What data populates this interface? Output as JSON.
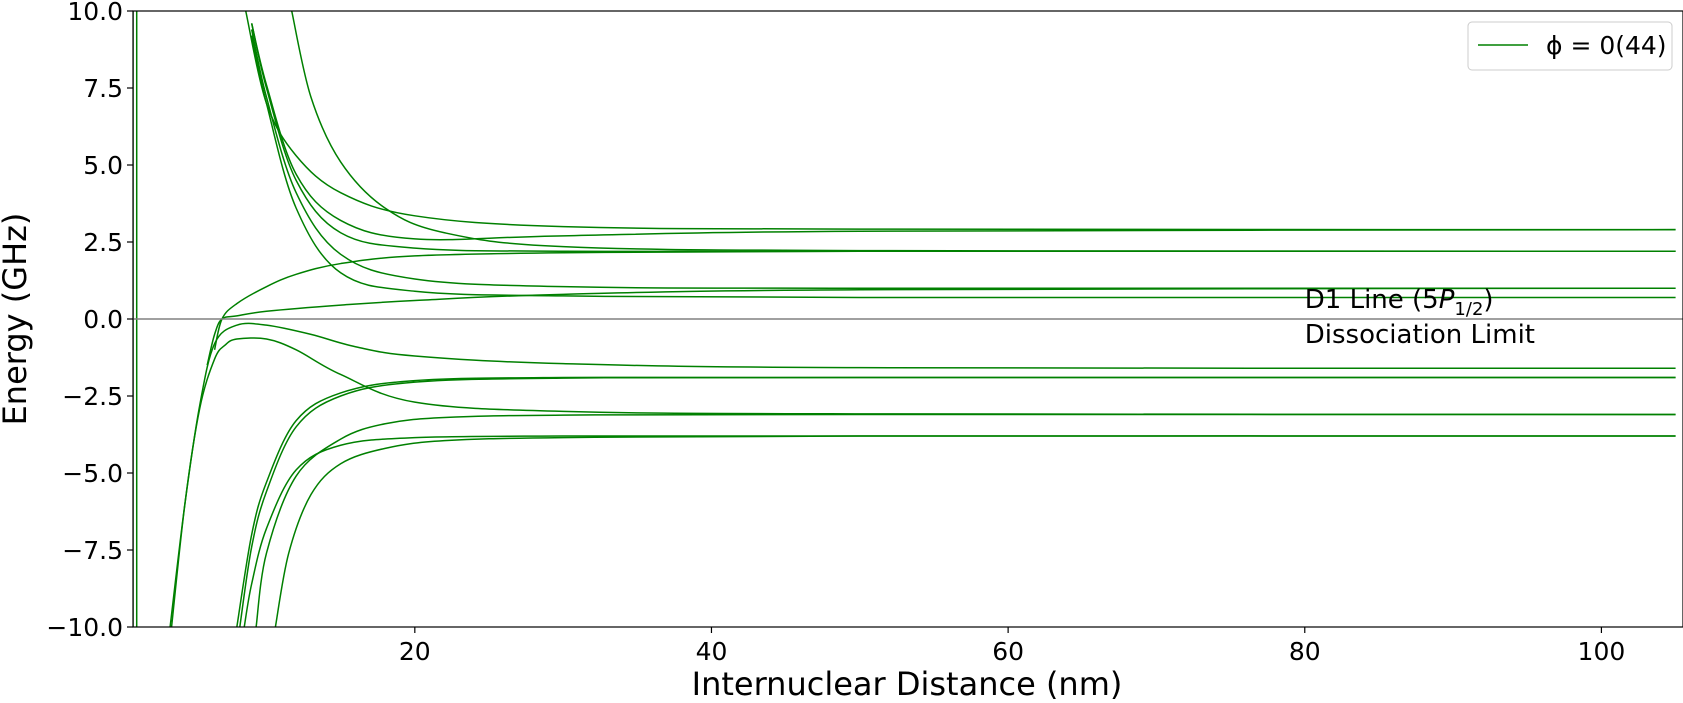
{
  "chart_data": {
    "type": "line",
    "title": "",
    "xlabel": "Internuclear Distance (nm)",
    "ylabel": "Energy (GHz)",
    "xlim": [
      1.0,
      105.5
    ],
    "ylim": [
      -10.0,
      10.0
    ],
    "x_ticks": [
      20,
      40,
      60,
      80,
      100
    ],
    "x_tick_labels": [
      "20",
      "40",
      "60",
      "80",
      "100"
    ],
    "y_ticks": [
      -10,
      -7.5,
      -5,
      -2.5,
      0,
      2.5,
      5,
      7.5,
      10
    ],
    "y_tick_labels": [
      "−10.0",
      "−7.5",
      "−5.0",
      "−2.5",
      "0.0",
      "2.5",
      "5.0",
      "7.5",
      "10.0"
    ],
    "grid": false,
    "legend": {
      "position": "top-right",
      "label": "ϕ = 0(44)"
    },
    "series_color": "#008000",
    "reference_line": {
      "y": 0,
      "color": "#808080"
    },
    "annotation": {
      "x": 80,
      "y": 0,
      "line1_prefix": "D1 Line (5",
      "line1_italic": "P",
      "line1_subscript": "1/2",
      "line1_suffix": ")",
      "line2": "Dissociation Limit"
    },
    "series": [
      {
        "asymptote": 2.9,
        "x": [
          8.6,
          10,
          12,
          15,
          20,
          30,
          50,
          105
        ],
        "y": [
          10.0,
          7.0,
          5.3,
          4.1,
          3.35,
          3.0,
          2.92,
          2.9
        ]
      },
      {
        "asymptote": 2.9,
        "x": [
          9,
          10,
          12,
          15,
          20,
          30,
          50,
          105
        ],
        "y": [
          9.6,
          7.6,
          4.7,
          3.2,
          2.6,
          2.7,
          2.85,
          2.9
        ]
      },
      {
        "asymptote": 2.2,
        "x": [
          11.7,
          13,
          15,
          18,
          22,
          30,
          50,
          105
        ],
        "y": [
          10.0,
          7.2,
          5.1,
          3.6,
          2.8,
          2.35,
          2.22,
          2.2
        ]
      },
      {
        "asymptote": 2.2,
        "x": [
          9,
          10,
          12,
          15,
          20,
          30,
          50,
          105
        ],
        "y": [
          9.6,
          7.5,
          4.5,
          2.8,
          2.3,
          2.2,
          2.2,
          2.2
        ]
      },
      {
        "asymptote": 1.0,
        "x": [
          9,
          10,
          12,
          15,
          20,
          30,
          50,
          105
        ],
        "y": [
          9.4,
          7.2,
          4.1,
          2.1,
          1.3,
          1.05,
          1.0,
          1.0
        ]
      },
      {
        "asymptote": 0.7,
        "x": [
          9,
          10,
          12,
          15,
          20,
          30,
          50,
          105
        ],
        "y": [
          9.2,
          7.0,
          3.6,
          1.5,
          0.9,
          0.75,
          0.7,
          0.7
        ]
      },
      {
        "asymptote": 2.2,
        "x": [
          6.5,
          7,
          8,
          10,
          12,
          15,
          20,
          30,
          50,
          105
        ],
        "y": [
          -1.0,
          0.0,
          0.5,
          1.05,
          1.45,
          1.8,
          2.05,
          2.15,
          2.2,
          2.2
        ]
      },
      {
        "asymptote": 1.0,
        "x": [
          6.0,
          6.5,
          7,
          8,
          10,
          15,
          20,
          30,
          50,
          105
        ],
        "y": [
          -1.5,
          -0.5,
          0.0,
          0.1,
          0.25,
          0.45,
          0.6,
          0.8,
          0.95,
          1.0
        ]
      },
      {
        "asymptote": -1.6,
        "x": [
          3.5,
          4.5,
          5.5,
          6.5,
          8,
          10,
          13,
          16,
          20,
          30,
          50,
          105
        ],
        "y": [
          -10.0,
          -6.0,
          -2.8,
          -0.8,
          -0.2,
          -0.2,
          -0.5,
          -0.9,
          -1.2,
          -1.45,
          -1.58,
          -1.6
        ]
      },
      {
        "asymptote": -3.1,
        "x": [
          3.6,
          4.5,
          5.5,
          6.5,
          7.2,
          8,
          10,
          12,
          15,
          20,
          30,
          50,
          105
        ],
        "y": [
          -10.0,
          -6.0,
          -2.9,
          -1.3,
          -0.85,
          -0.65,
          -0.65,
          -1.0,
          -1.8,
          -2.7,
          -3.0,
          -3.08,
          -3.1
        ]
      },
      {
        "asymptote": -1.9,
        "x": [
          8.0,
          9,
          10,
          12,
          15,
          20,
          30,
          50,
          105
        ],
        "y": [
          -10.0,
          -7.0,
          -5.3,
          -3.3,
          -2.4,
          -2.0,
          -1.9,
          -1.9,
          -1.9
        ]
      },
      {
        "asymptote": -1.9,
        "x": [
          8.2,
          9,
          10,
          12,
          15,
          20,
          30,
          50,
          105
        ],
        "y": [
          -10.0,
          -7.4,
          -5.6,
          -3.5,
          -2.5,
          -2.05,
          -1.92,
          -1.9,
          -1.9
        ]
      },
      {
        "asymptote": -3.1,
        "x": [
          9.3,
          10,
          12,
          15,
          18,
          22,
          30,
          50,
          105
        ],
        "y": [
          -10.0,
          -7.6,
          -5.1,
          -3.9,
          -3.4,
          -3.2,
          -3.12,
          -3.1,
          -3.1
        ]
      },
      {
        "asymptote": -3.8,
        "x": [
          8.5,
          9,
          10,
          12,
          15,
          20,
          30,
          50,
          105
        ],
        "y": [
          -10.0,
          -8.6,
          -6.8,
          -4.9,
          -4.1,
          -3.85,
          -3.8,
          -3.8,
          -3.8
        ]
      },
      {
        "asymptote": -3.8,
        "x": [
          10.6,
          11.5,
          13,
          15,
          18,
          22,
          30,
          50,
          105
        ],
        "y": [
          -10.0,
          -7.6,
          -5.7,
          -4.7,
          -4.2,
          -3.95,
          -3.85,
          -3.8,
          -3.8
        ]
      },
      {
        "asymptote": null,
        "x": [
          1.0,
          1.0
        ],
        "y": [
          -10.0,
          10.0
        ]
      },
      {
        "asymptote": null,
        "x": [
          1.25,
          1.25
        ],
        "y": [
          -10.0,
          10.0
        ]
      }
    ]
  }
}
